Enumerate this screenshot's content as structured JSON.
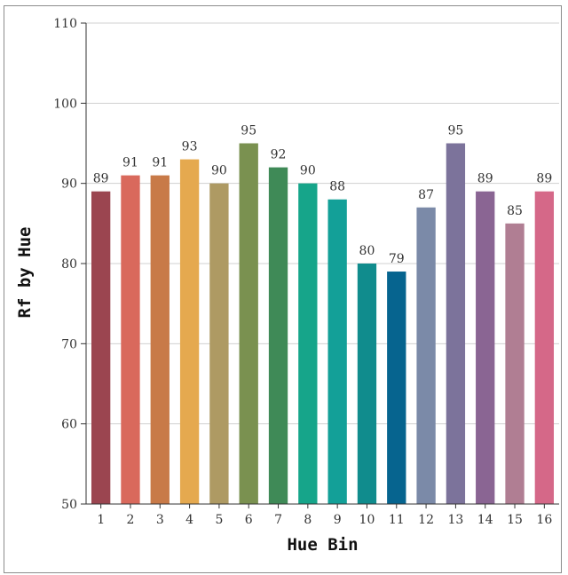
{
  "chart_data": {
    "type": "bar",
    "title": "",
    "xlabel": "Hue Bin",
    "ylabel": "Rf by Hue",
    "categories": [
      "1",
      "2",
      "3",
      "4",
      "5",
      "6",
      "7",
      "8",
      "9",
      "10",
      "11",
      "12",
      "13",
      "14",
      "15",
      "16"
    ],
    "values": [
      89,
      91,
      91,
      93,
      90,
      95,
      92,
      90,
      88,
      80,
      79,
      87,
      95,
      89,
      85,
      89
    ],
    "colors": [
      "#9b4550",
      "#d9695c",
      "#c87a48",
      "#e5a94f",
      "#ae9a63",
      "#7a9150",
      "#3f8a57",
      "#16a58a",
      "#13a098",
      "#108c8d",
      "#06648f",
      "#7b8aa8",
      "#7c739b",
      "#8a6593",
      "#b07e93",
      "#d56888"
    ],
    "ylim": [
      50,
      110
    ],
    "yticks": [
      50,
      60,
      70,
      80,
      90,
      100,
      110
    ],
    "grid": true,
    "data_labels": true
  }
}
